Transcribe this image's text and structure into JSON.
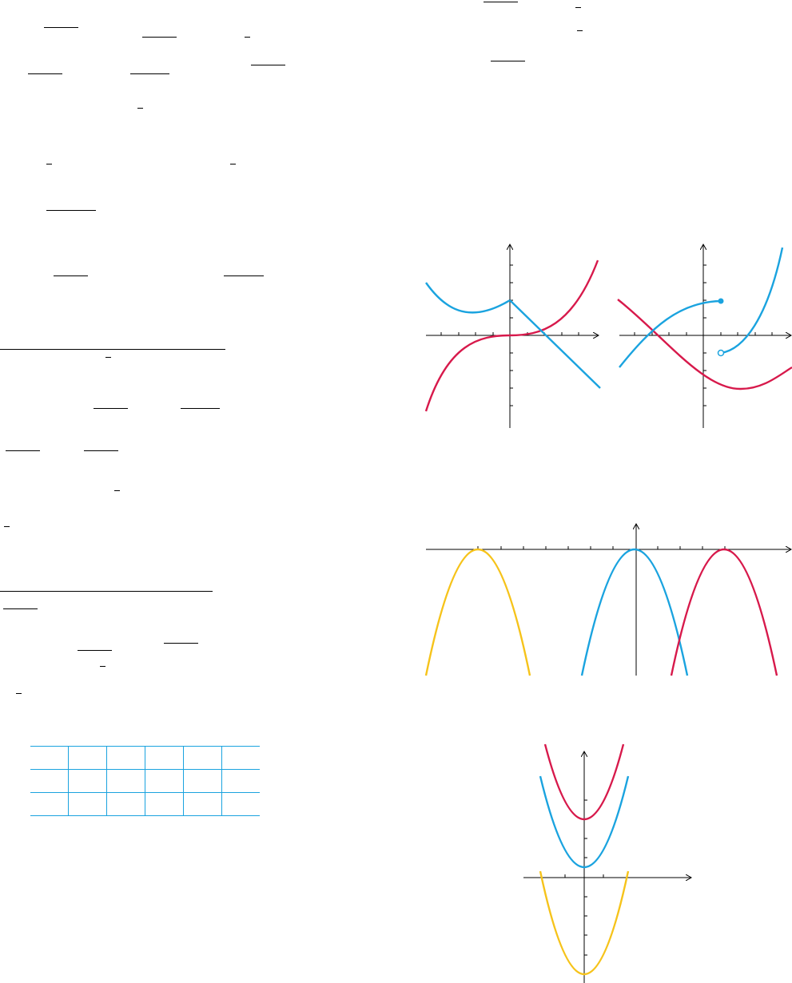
{
  "answer_table": {
    "rows": [
      [
        "",
        "",
        "",
        "",
        "",
        ""
      ],
      [
        "",
        "",
        "",
        "",
        "",
        ""
      ],
      [
        "",
        "",
        "",
        "",
        "",
        ""
      ]
    ]
  },
  "colors": {
    "blue_curve": "#1aa3df",
    "red_curve": "#d7194b",
    "yellow_curve": "#f6c31a",
    "axis": "#000000",
    "table_lines": "#1aa3df"
  },
  "figures": [
    {
      "name": "graph-cubic-and-absolute",
      "curves": [
        "red",
        "blue",
        "blue"
      ]
    },
    {
      "name": "graph-piecewise-and-cosine",
      "curves": [
        "red",
        "blue",
        "blue"
      ],
      "markers": [
        "closed-dot",
        "open-dot"
      ]
    },
    {
      "name": "graph-three-downward-parabolas",
      "curves": [
        "yellow",
        "blue",
        "red"
      ]
    },
    {
      "name": "graph-three-upward-downward-parabolas",
      "curves": [
        "red",
        "blue",
        "yellow"
      ]
    }
  ]
}
